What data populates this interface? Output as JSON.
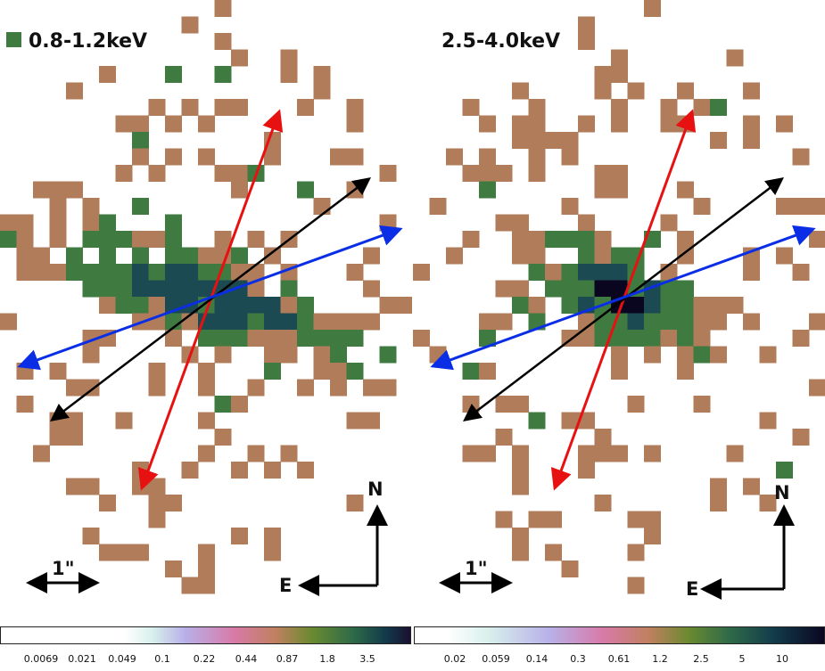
{
  "colors": {
    "low": "#b07c5a",
    "mid": "#3f7a40",
    "high": "#1c4a52",
    "peak": "#0b0620",
    "red_axis": "#e81111",
    "blue_axis": "#0a2ee6",
    "black_axis": "#000000"
  },
  "panels": [
    {
      "band_label": "0.8-1.2keV",
      "scale_label": "1\"",
      "north_label": "N",
      "east_label": "E",
      "colorbar_ticks": [
        "0.0069",
        "0.021",
        "0.049",
        "0.1",
        "0.22",
        "0.44",
        "0.87",
        "1.8",
        "3.5"
      ]
    },
    {
      "band_label": "2.5-4.0keV",
      "scale_label": "1\"",
      "north_label": "N",
      "east_label": "E",
      "colorbar_ticks": [
        "0.02",
        "0.059",
        "0.14",
        "0.3",
        "0.61",
        "1.2",
        "2.5",
        "5",
        "10"
      ]
    }
  ],
  "legend_icon": "green-square-icon"
}
